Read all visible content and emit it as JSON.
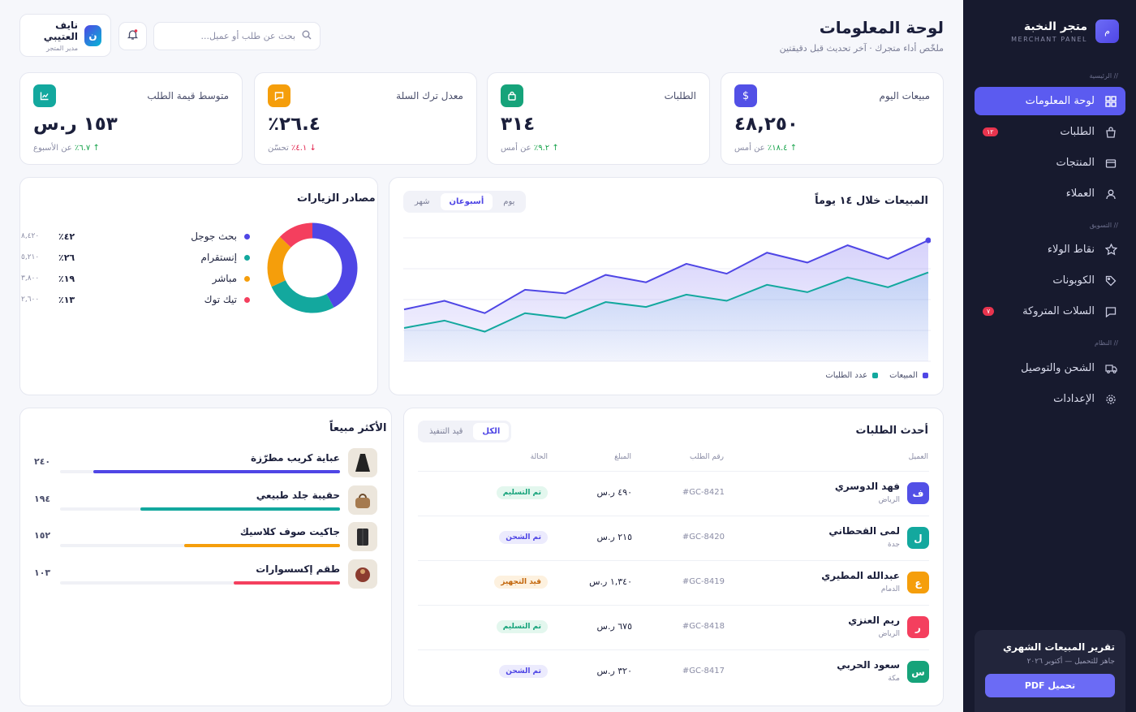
{
  "sidebar": {
    "brand_title": "متجر النخبة",
    "brand_sub": "MERCHANT PANEL",
    "sections": [
      "// الرئيسية",
      "// التسويق",
      "// النظام"
    ],
    "items": [
      {
        "label": "لوحة المعلومات",
        "icon": "grid-icon",
        "active": true
      },
      {
        "label": "الطلبات",
        "icon": "bag-icon",
        "badge": "١٢"
      },
      {
        "label": "المنتجات",
        "icon": "box-icon"
      },
      {
        "label": "العملاء",
        "icon": "user-icon"
      },
      {
        "label": "نقاط الولاء",
        "icon": "star-icon"
      },
      {
        "label": "الكوبونات",
        "icon": "tag-icon"
      },
      {
        "label": "السلات المتروكة",
        "icon": "chat-icon",
        "badge": "٧"
      },
      {
        "label": "الشحن والتوصيل",
        "icon": "truck-icon"
      },
      {
        "label": "الإعدادات",
        "icon": "gear-icon"
      }
    ],
    "report": {
      "title": "تقرير المبيعات الشهري",
      "sub": "جاهز للتحميل — أكتوبر ٢٠٢٦",
      "button": "تحميل PDF"
    }
  },
  "header": {
    "title": "لوحة المعلومات",
    "subtitle": "ملخّص أداء متجرك · آخر تحديث قبل دقيقتين",
    "search_placeholder": "بحث عن طلب أو عميل...",
    "user_name": "نايف العتيبي",
    "user_role": "مدير المتجر",
    "user_initial": "ن"
  },
  "kpis": [
    {
      "label": "مبيعات اليوم",
      "value": "٤٨,٢٥٠",
      "delta": "١٨.٤٪",
      "delta_suffix": "عن أمس",
      "dir": "up",
      "color": "#5250e6",
      "icon": "$"
    },
    {
      "label": "الطلبات",
      "value": "٣١٤",
      "delta": "٩.٢٪",
      "delta_suffix": "عن أمس",
      "dir": "up",
      "color": "#16a37a",
      "icon": "🔒"
    },
    {
      "label": "معدل ترك السلة",
      "value": "٢٦.٤٪",
      "delta": "٤.١٪",
      "delta_suffix": "تحسّن",
      "dir": "down",
      "color": "#f59e0b",
      "icon": "▭"
    },
    {
      "label": "متوسط قيمة الطلب",
      "value": "١٥٣ ر.س",
      "delta": "٦.٧٪",
      "delta_suffix": "عن الأسبوع",
      "dir": "up",
      "color": "#13a89e",
      "icon": "📈"
    }
  ],
  "sales_chart": {
    "title": "المبيعات خلال ١٤ يوماً",
    "tabs": [
      "يوم",
      "أسبوعان",
      "شهر"
    ],
    "active_tab": 1,
    "legend": [
      {
        "name": "المبيعات",
        "color": "#4f46e5"
      },
      {
        "name": "عدد الطلبات",
        "color": "#13a89e"
      }
    ]
  },
  "chart_data": [
    {
      "type": "area",
      "title": "المبيعات خلال ١٤ يوماً",
      "x": [
        1,
        2,
        3,
        4,
        5,
        6,
        7,
        8,
        9,
        10,
        11,
        12,
        13,
        14
      ],
      "ylim": [
        0,
        100
      ],
      "series": [
        {
          "name": "المبيعات",
          "color": "#4f46e5",
          "values": [
            42,
            49,
            39,
            58,
            55,
            70,
            64,
            79,
            71,
            88,
            80,
            94,
            83,
            98
          ]
        },
        {
          "name": "عدد الطلبات",
          "color": "#13a89e",
          "values": [
            27,
            33,
            24,
            39,
            35,
            48,
            44,
            54,
            49,
            62,
            56,
            68,
            60,
            72
          ]
        }
      ]
    },
    {
      "type": "pie",
      "title": "مصادر الزيارات",
      "categories": [
        "بحث جوجل",
        "إنستقرام",
        "مباشر",
        "تيك توك"
      ],
      "values": [
        42,
        26,
        19,
        13
      ],
      "colors": [
        "#4f46e5",
        "#13a89e",
        "#f59e0b",
        "#f43f5e"
      ]
    }
  ],
  "traffic": {
    "title": "مصادر الزيارات",
    "rows": [
      {
        "name": "بحث جوجل",
        "pct": "٤٢٪",
        "count": "٨,٤٢٠",
        "color": "#4f46e5"
      },
      {
        "name": "إنستقرام",
        "pct": "٢٦٪",
        "count": "٥,٢١٠",
        "color": "#13a89e"
      },
      {
        "name": "مباشر",
        "pct": "١٩٪",
        "count": "٣,٨٠٠",
        "color": "#f59e0b"
      },
      {
        "name": "تيك توك",
        "pct": "١٣٪",
        "count": "٢,٦٠٠",
        "color": "#f43f5e"
      }
    ]
  },
  "orders": {
    "title": "أحدث الطلبات",
    "tabs": [
      "الكل",
      "قيد التنفيذ"
    ],
    "columns": [
      "العميل",
      "رقم الطلب",
      "المبلغ",
      "الحالة"
    ],
    "rows": [
      {
        "initial": "ف",
        "name": "فهد الدوسري",
        "city": "الرياض",
        "id": "#GC-8421",
        "amount": "٤٩٠ ر.س",
        "status": "تم التسليم",
        "status_color": "#16a37a",
        "status_bg": "#e3f7ee",
        "avatar": "#5250e6"
      },
      {
        "initial": "ل",
        "name": "لمى القحطاني",
        "city": "جدة",
        "id": "#GC-8420",
        "amount": "٢١٥ ر.س",
        "status": "تم الشحن",
        "status_color": "#4f46e5",
        "status_bg": "#ecebfd",
        "avatar": "#13a89e"
      },
      {
        "initial": "ع",
        "name": "عبدالله المطيري",
        "city": "الدمام",
        "id": "#GC-8419",
        "amount": "١,٣٤٠ ر.س",
        "status": "قيد التجهيز",
        "status_color": "#c2650a",
        "status_bg": "#fdf1df",
        "avatar": "#f59e0b"
      },
      {
        "initial": "ر",
        "name": "ريم العنزي",
        "city": "الرياض",
        "id": "#GC-8418",
        "amount": "٦٧٥ ر.س",
        "status": "تم التسليم",
        "status_color": "#16a37a",
        "status_bg": "#e3f7ee",
        "avatar": "#f43f5e"
      },
      {
        "initial": "س",
        "name": "سعود الحربي",
        "city": "مكة",
        "id": "#GC-8417",
        "amount": "٣٢٠ ر.س",
        "status": "تم الشحن",
        "status_color": "#4f46e5",
        "status_bg": "#ecebfd",
        "avatar": "#16a37a"
      }
    ]
  },
  "bestsellers": {
    "title": "الأكثر مبيعاً",
    "items": [
      {
        "name": "عباية كريب مطرّزة",
        "value": "٢٤٠",
        "fill": 1.0,
        "color": "#4f46e5",
        "icon": "abaya-icon"
      },
      {
        "name": "حقيبة جلد طبيعي",
        "value": "١٩٤",
        "fill": 0.81,
        "color": "#13a89e",
        "icon": "bag-product-icon"
      },
      {
        "name": "جاكيت صوف كلاسيك",
        "value": "١٥٢",
        "fill": 0.63,
        "color": "#f59e0b",
        "icon": "jacket-icon"
      },
      {
        "name": "طقم إكسسوارات",
        "value": "١٠٣",
        "fill": 0.43,
        "color": "#f43f5e",
        "icon": "accessory-icon"
      }
    ]
  }
}
